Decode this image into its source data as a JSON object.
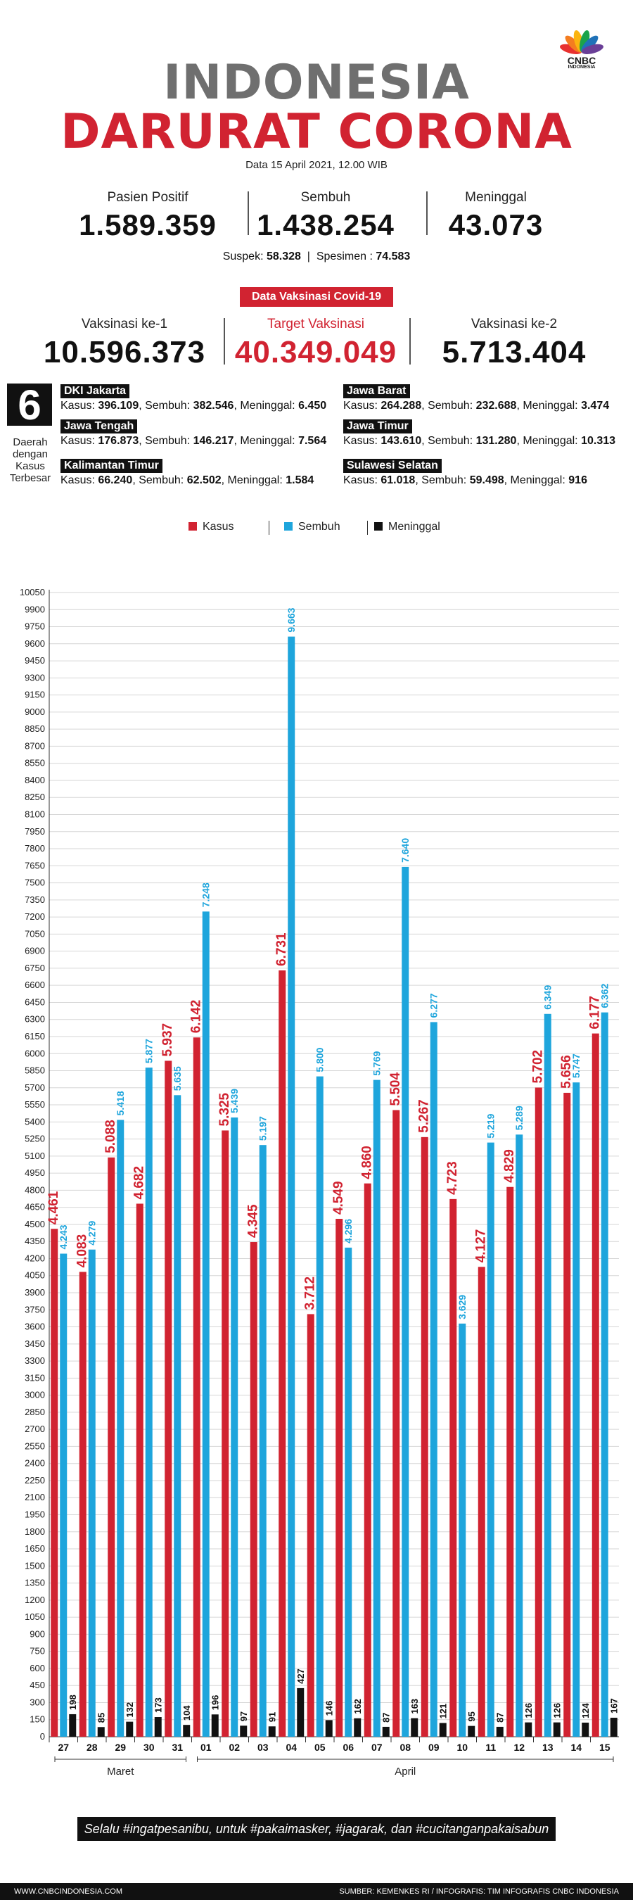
{
  "logo": {
    "brand": "CNBC",
    "sub": "INDONESIA"
  },
  "title": {
    "line1": "INDONESIA",
    "line2": "DARURAT CORONA"
  },
  "date": "Data 15 April 2021, 12.00 WIB",
  "stats": [
    {
      "label": "Pasien Positif",
      "value": "1.589.359"
    },
    {
      "label": "Sembuh",
      "value": "1.438.254"
    },
    {
      "label": "Meninggal",
      "value": "43.073"
    }
  ],
  "suspek": {
    "label": "Suspek:",
    "value": "58.328",
    "sep": "|",
    "label2": "Spesimen :",
    "value2": "74.583"
  },
  "vaccine": {
    "badge": "Data Vaksinasi Covid-19",
    "items": [
      {
        "label": "Vaksinasi ke-1",
        "value": "10.596.373"
      },
      {
        "label": "Target Vaksinasi",
        "value": "40.349.049"
      },
      {
        "label": "Vaksinasi ke-2",
        "value": "5.713.404"
      }
    ]
  },
  "regions": {
    "count": "6",
    "count_label": [
      "Daerah",
      "dengan",
      "Kasus",
      "Terbesar"
    ],
    "items": [
      {
        "name": "DKI Jakarta",
        "kasus": "396.109",
        "sembuh": "382.546",
        "meninggal": "6.450"
      },
      {
        "name": "Jawa Barat",
        "kasus": "264.288",
        "sembuh": "232.688",
        "meninggal": "3.474"
      },
      {
        "name": "Jawa Tengah",
        "kasus": "176.873",
        "sembuh": "146.217",
        "meninggal": "7.564"
      },
      {
        "name": "Jawa Timur",
        "kasus": "143.610",
        "sembuh": "131.280",
        "meninggal": "10.313"
      },
      {
        "name": "Kalimantan Timur",
        "kasus": "66.240",
        "sembuh": "62.502",
        "meninggal": "1.584"
      },
      {
        "name": "Sulawesi Selatan",
        "kasus": "61.018",
        "sembuh": "59.498",
        "meninggal": "916"
      }
    ],
    "kasus_label": "Kasus:",
    "sembuh_label": "Sembuh:",
    "meninggal_label": "Meninggal:"
  },
  "legend": [
    {
      "name": "Kasus",
      "color": "#d12331"
    },
    {
      "name": "Sembuh",
      "color": "#1ea5dc"
    },
    {
      "name": "Meninggal",
      "color": "#111111"
    }
  ],
  "chart_data": {
    "type": "bar",
    "categories": [
      "27",
      "28",
      "29",
      "30",
      "31",
      "01",
      "02",
      "03",
      "04",
      "05",
      "06",
      "07",
      "08",
      "09",
      "10",
      "11",
      "12",
      "13",
      "14",
      "15"
    ],
    "month_labels": [
      {
        "name": "Maret",
        "from": 0,
        "to": 4
      },
      {
        "name": "April",
        "from": 5,
        "to": 19
      }
    ],
    "series": [
      {
        "name": "Kasus",
        "color": "#d12331",
        "values": [
          4461,
          4083,
          5088,
          4682,
          5937,
          6142,
          5325,
          4345,
          6731,
          3712,
          4549,
          4860,
          5504,
          5267,
          4723,
          4127,
          4829,
          5702,
          5656,
          6177
        ]
      },
      {
        "name": "Sembuh",
        "color": "#1ea5dc",
        "values": [
          4243,
          4279,
          5418,
          5877,
          5635,
          7248,
          5439,
          5197,
          9663,
          5800,
          4296,
          5769,
          7640,
          6277,
          3629,
          5219,
          5289,
          6349,
          5747,
          6362
        ]
      },
      {
        "name": "Meninggal",
        "color": "#111111",
        "values": [
          198,
          85,
          132,
          173,
          104,
          196,
          97,
          91,
          427,
          146,
          162,
          87,
          163,
          121,
          95,
          87,
          126,
          126,
          124,
          167
        ]
      }
    ],
    "labels": {
      "Kasus": [
        "4.461",
        "4.083",
        "5.088",
        "4.682",
        "5.937",
        "6.142",
        "5.325",
        "4.345",
        "6.731",
        "3.712",
        "4.549",
        "4.860",
        "5.504",
        "5.267",
        "4.723",
        "4.127",
        "4.829",
        "5.702",
        "5.656",
        "6.177"
      ],
      "Sembuh": [
        "4.243",
        "4.279",
        "5.418",
        "5.877",
        "5.635",
        "7.248",
        "5.439",
        "5.197",
        "9.663",
        "5.800",
        "4.296",
        "5.769",
        "7.640",
        "6.277",
        "3.629",
        "5.219",
        "5.289",
        "6.349",
        "5.747",
        "6.362"
      ],
      "Meninggal": [
        "198",
        "85",
        "132",
        "173",
        "104",
        "196",
        "97",
        "91",
        "427",
        "146",
        "162",
        "87",
        "163",
        "121",
        "95",
        "87",
        "126",
        "126",
        "124",
        "167"
      ]
    },
    "ylim": [
      0,
      10050
    ],
    "ytick_step": 150,
    "grid": true
  },
  "footnote": "Selalu #ingatpesanibu, untuk #pakaimasker, #jagarak, dan #cucitanganpakaisabun",
  "footer": {
    "left": "WWW.CNBCINDONESIA.COM",
    "right": "SUMBER: KEMENKES RI / INFOGRAFIS: TIM INFOGRAFIS CNBC INDONESIA"
  }
}
